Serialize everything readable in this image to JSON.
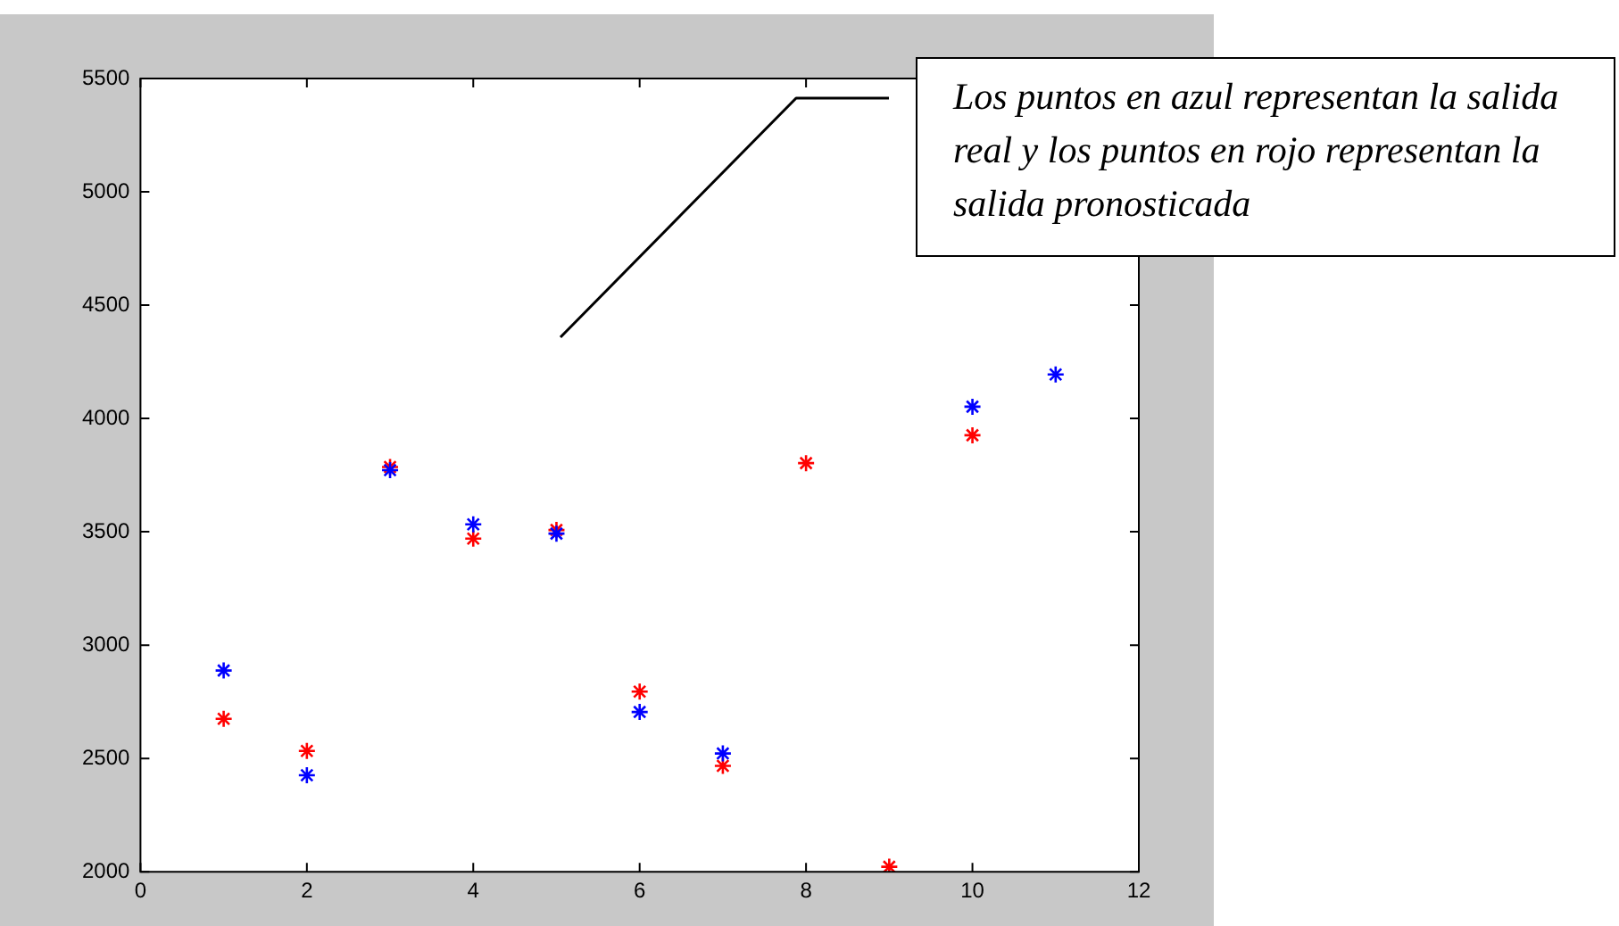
{
  "chart_data": {
    "type": "scatter",
    "series": [
      {
        "color": "#0000ff",
        "x": [
          1,
          2,
          3,
          4,
          5,
          6,
          7,
          10,
          11
        ],
        "values": [
          2888,
          2426,
          3772,
          3533,
          3492,
          2705,
          2522,
          4052,
          4194
        ]
      },
      {
        "color": "#ff0000",
        "x": [
          1,
          2,
          3,
          4,
          5,
          6,
          7,
          8,
          9,
          10
        ],
        "values": [
          2675,
          2533,
          3786,
          3470,
          3508,
          2795,
          2467,
          3803,
          2022,
          3926
        ]
      }
    ],
    "xlim": [
      0,
      12
    ],
    "xticks": [
      0,
      2,
      4,
      6,
      8,
      10,
      12
    ],
    "ylim": [
      2000,
      5500
    ],
    "yticks": [
      2000,
      2500,
      3000,
      3500,
      4000,
      4500,
      5000,
      5500
    ],
    "grid": false,
    "legend": false,
    "marker": "cross",
    "annotations": [
      "Los puntos en azul representan la salida real y los puntos en rojo representan la salida pronosticada"
    ]
  }
}
